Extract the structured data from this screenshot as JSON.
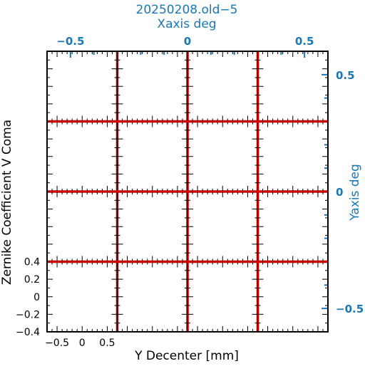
{
  "chart_data": {
    "type": "line",
    "title": "20250208.old−5",
    "top_axis_label": "Xaxis deg",
    "right_axis_label": "Yaxis deg",
    "xlabel": "Y Decenter [mm]",
    "ylabel": "Zernike Coefficient V Coma",
    "top_ticks": [
      "−0.5",
      "0",
      "0.5"
    ],
    "top_tick_values": [
      -0.5,
      0,
      0.5
    ],
    "top_range": [
      -0.6,
      0.6
    ],
    "right_ticks": [
      "0.5",
      "0",
      "−0.5"
    ],
    "right_tick_values": [
      0.5,
      0,
      -0.5
    ],
    "right_range": [
      -0.6,
      0.6
    ],
    "grid": {
      "cols": 4,
      "rows": 4
    },
    "cell_x_ticks": [
      "−0.5",
      "0",
      "0.5"
    ],
    "cell_x_values": [
      -0.5,
      0,
      0.5
    ],
    "cell_xlim": [
      -0.7,
      0.7
    ],
    "cell_y_ticks": [
      "0.4",
      "0.2",
      "0",
      "−0.2",
      "−0.4"
    ],
    "cell_y_values": [
      0.4,
      0.2,
      0,
      -0.2,
      -0.4
    ],
    "cell_ylim": [
      -0.4,
      0.4
    ],
    "series": [
      {
        "x": [
          -0.7,
          0.7
        ],
        "y": [
          0.4,
          0.4
        ]
      }
    ],
    "colors": {
      "accent": "#1a78b4",
      "line": "#cc0000",
      "frame": "#000000"
    }
  }
}
